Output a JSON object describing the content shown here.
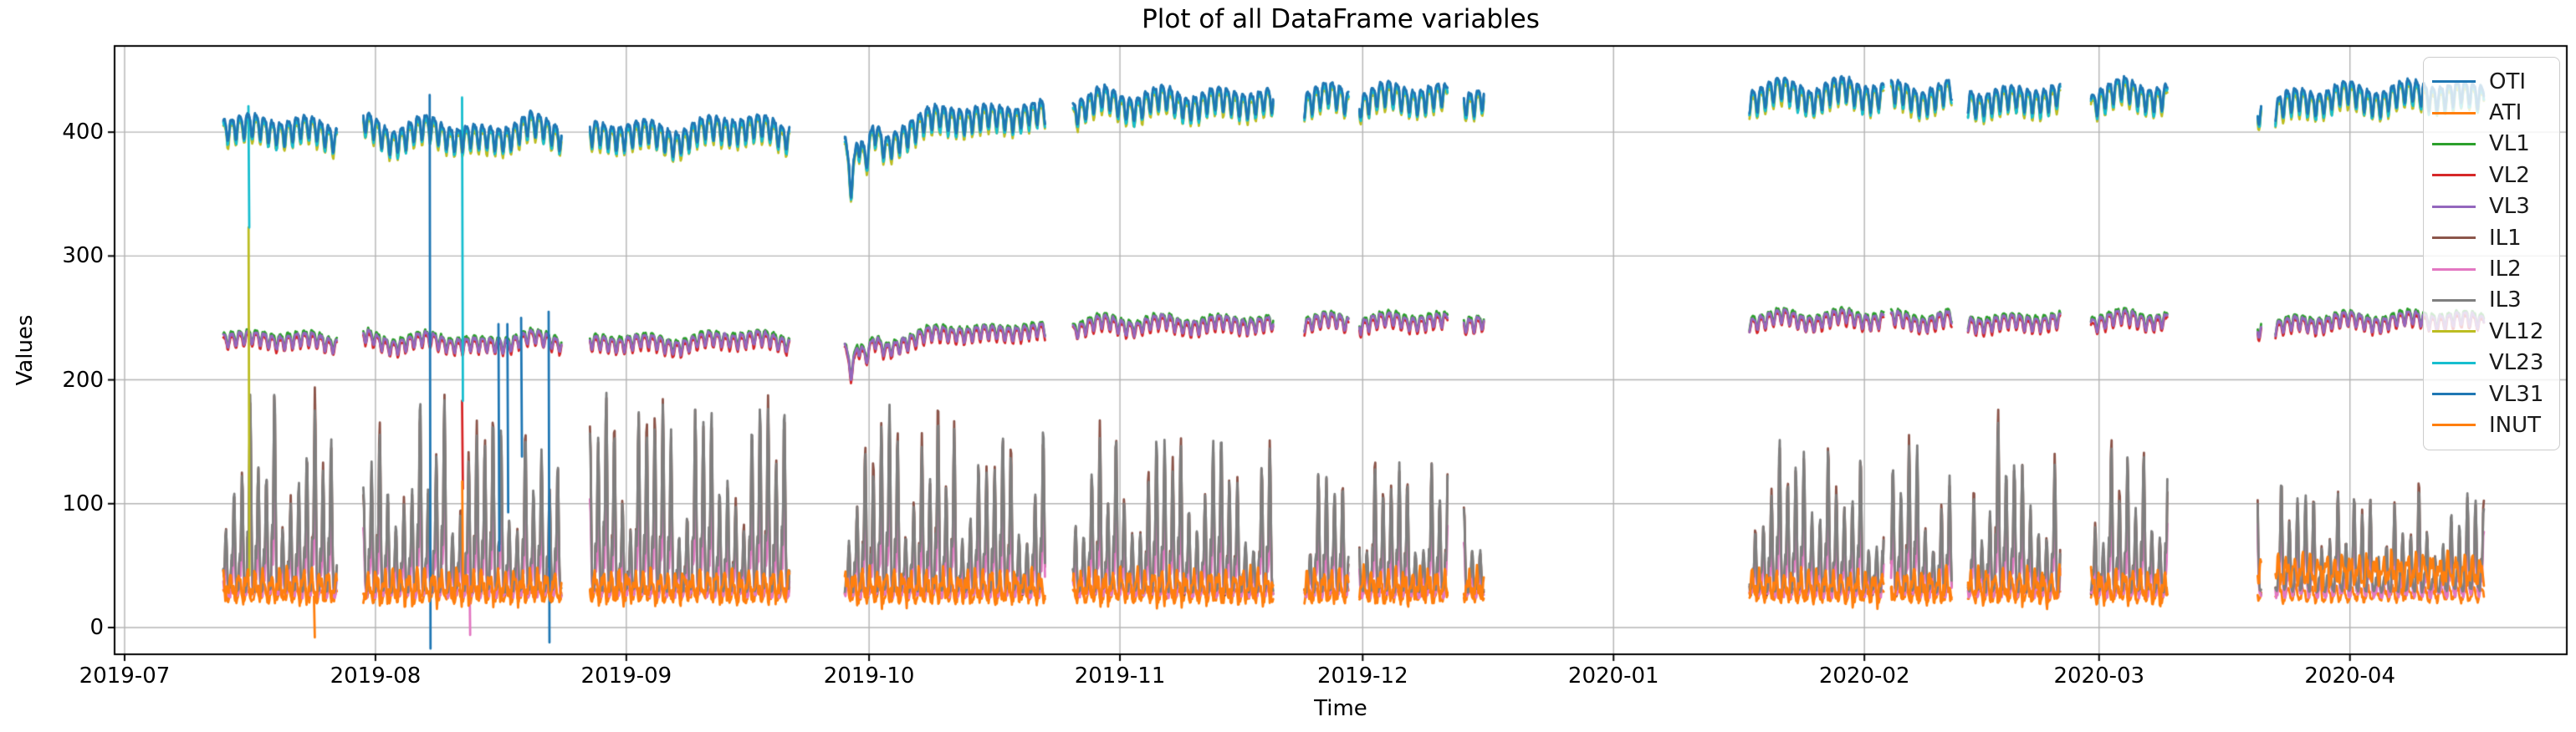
{
  "chart_data": {
    "type": "line",
    "title": "Plot of all DataFrame variables",
    "xlabel": "Time",
    "ylabel": "Values",
    "grid": true,
    "legend_position": "upper right",
    "axis_reference_date": "2019-07-01",
    "xlim_days": [
      -1.24,
      301.8
    ],
    "ylim": [
      -21.6,
      469.6
    ],
    "x_ticks": [
      {
        "label": "2019-07",
        "day": 0
      },
      {
        "label": "2019-08",
        "day": 31
      },
      {
        "label": "2019-09",
        "day": 62
      },
      {
        "label": "2019-10",
        "day": 92
      },
      {
        "label": "2019-11",
        "day": 123
      },
      {
        "label": "2019-12",
        "day": 153
      },
      {
        "label": "2020-01",
        "day": 184
      },
      {
        "label": "2020-02",
        "day": 215
      },
      {
        "label": "2020-03",
        "day": 244
      },
      {
        "label": "2020-04",
        "day": 275
      }
    ],
    "y_ticks": [
      0,
      100,
      200,
      300,
      400
    ],
    "series": [
      {
        "name": "OTI",
        "color": "#1f77b4"
      },
      {
        "name": "ATI",
        "color": "#ff7f0e"
      },
      {
        "name": "VL1",
        "color": "#2ca02c"
      },
      {
        "name": "VL2",
        "color": "#d62728"
      },
      {
        "name": "VL3",
        "color": "#9467bd"
      },
      {
        "name": "IL1",
        "color": "#8c564b"
      },
      {
        "name": "IL2",
        "color": "#e377c2"
      },
      {
        "name": "IL3",
        "color": "#7f7f7f"
      },
      {
        "name": "VL12",
        "color": "#bcbd22"
      },
      {
        "name": "VL23",
        "color": "#17becf"
      },
      {
        "name": "VL31",
        "color": "#1f77b4"
      },
      {
        "name": "INUT",
        "color": "#ff7f0e"
      }
    ],
    "segments": [
      {
        "start": 12.2,
        "end": 26.3
      },
      {
        "start": 29.5,
        "end": 54.0
      },
      {
        "start": 57.5,
        "end": 82.2
      },
      {
        "start": 89.0,
        "end": 113.8
      },
      {
        "start": 117.2,
        "end": 142.0
      },
      {
        "start": 145.8,
        "end": 151.3
      },
      {
        "start": 152.6,
        "end": 163.5
      },
      {
        "start": 165.5,
        "end": 168.0
      },
      {
        "start": 200.8,
        "end": 217.4
      },
      {
        "start": 218.3,
        "end": 225.8
      },
      {
        "start": 227.8,
        "end": 239.2
      },
      {
        "start": 243.0,
        "end": 252.5
      },
      {
        "start": 263.6,
        "end": 264.1
      },
      {
        "start": 265.8,
        "end": 291.6
      }
    ],
    "top_profile": [
      [
        12,
        407
      ],
      [
        16,
        402
      ],
      [
        20,
        404
      ],
      [
        26,
        398
      ],
      [
        29.5,
        406
      ],
      [
        33,
        396
      ],
      [
        38,
        403
      ],
      [
        44,
        393
      ],
      [
        50,
        405
      ],
      [
        54,
        399
      ],
      [
        57.5,
        396
      ],
      [
        62,
        401
      ],
      [
        68,
        395
      ],
      [
        75,
        406
      ],
      [
        82,
        399
      ],
      [
        89,
        396
      ],
      [
        89.8,
        360
      ],
      [
        90.6,
        394
      ],
      [
        91.6,
        376
      ],
      [
        92.6,
        398
      ],
      [
        94,
        386
      ],
      [
        96,
        400
      ],
      [
        99,
        408
      ],
      [
        103,
        414
      ],
      [
        107,
        410
      ],
      [
        111,
        417
      ],
      [
        114,
        413
      ],
      [
        117.2,
        419
      ],
      [
        121,
        426
      ],
      [
        125,
        422
      ],
      [
        129,
        427
      ],
      [
        133,
        422
      ],
      [
        137,
        427
      ],
      [
        142,
        423
      ],
      [
        145.8,
        426
      ],
      [
        149,
        429
      ],
      [
        152.6,
        425
      ],
      [
        157,
        430
      ],
      [
        163.5,
        427
      ],
      [
        165.5,
        427
      ],
      [
        168,
        429
      ],
      [
        200.8,
        429
      ],
      [
        205,
        433
      ],
      [
        209,
        429
      ],
      [
        213,
        434
      ],
      [
        217.4,
        430
      ],
      [
        218.3,
        431
      ],
      [
        222,
        428
      ],
      [
        225.8,
        432
      ],
      [
        227.8,
        427
      ],
      [
        232,
        425
      ],
      [
        236,
        429
      ],
      [
        239.2,
        428
      ],
      [
        243,
        427
      ],
      [
        247,
        433
      ],
      [
        252.5,
        429
      ],
      [
        263.6,
        420
      ],
      [
        265.8,
        419
      ],
      [
        269,
        425
      ],
      [
        274,
        430
      ],
      [
        279,
        427
      ],
      [
        284,
        433
      ],
      [
        288,
        429
      ],
      [
        291.6,
        431
      ]
    ],
    "il_max_profile": [
      [
        12,
        195
      ],
      [
        17,
        205
      ],
      [
        22,
        188
      ],
      [
        26,
        192
      ],
      [
        29.5,
        190
      ],
      [
        35,
        186
      ],
      [
        40,
        196
      ],
      [
        47,
        190
      ],
      [
        54,
        186
      ],
      [
        57.5,
        208
      ],
      [
        63,
        190
      ],
      [
        70,
        184
      ],
      [
        76,
        190
      ],
      [
        82,
        186
      ],
      [
        89,
        180
      ],
      [
        95,
        184
      ],
      [
        101,
        180
      ],
      [
        107,
        176
      ],
      [
        114,
        172
      ],
      [
        117.2,
        170
      ],
      [
        124,
        166
      ],
      [
        130,
        162
      ],
      [
        136,
        165
      ],
      [
        142,
        158
      ],
      [
        145.8,
        152
      ],
      [
        152.6,
        155
      ],
      [
        158,
        150
      ],
      [
        163.5,
        148
      ],
      [
        165.5,
        150
      ],
      [
        168,
        148
      ],
      [
        200.8,
        152
      ],
      [
        206,
        162
      ],
      [
        212,
        156
      ],
      [
        217.4,
        150
      ],
      [
        218.3,
        162
      ],
      [
        222,
        155
      ],
      [
        225.8,
        152
      ],
      [
        227.8,
        162
      ],
      [
        232,
        182
      ],
      [
        236,
        158
      ],
      [
        239.2,
        155
      ],
      [
        243,
        158
      ],
      [
        248,
        152
      ],
      [
        252.5,
        148
      ],
      [
        263.6,
        150
      ],
      [
        265.8,
        148
      ],
      [
        268,
        132
      ],
      [
        272,
        112
      ],
      [
        277,
        106
      ],
      [
        282,
        112
      ],
      [
        287,
        116
      ],
      [
        291.6,
        120
      ]
    ],
    "anomalies": [
      {
        "day": 15.3,
        "series": "VL23",
        "from": 421,
        "to": 323
      },
      {
        "day": 15.32,
        "series": "VL12",
        "from": 323,
        "to": 42
      },
      {
        "day": 23.4,
        "series": "INUT",
        "from": 25,
        "to": -8
      },
      {
        "day": 37.7,
        "series": "VL31",
        "from": 430,
        "to": -17
      },
      {
        "day": 41.7,
        "series": "VL23",
        "from": 428,
        "to": 183
      },
      {
        "day": 41.7,
        "series": "VL2",
        "from": 183,
        "to": 112
      },
      {
        "day": 41.72,
        "series": "INUT",
        "from": 118,
        "to": 30
      },
      {
        "day": 42.6,
        "series": "IL2",
        "from": 55,
        "to": -6
      },
      {
        "day": 46.2,
        "series": "VL31",
        "from": 245,
        "to": 62
      },
      {
        "day": 47.3,
        "series": "VL31",
        "from": 245,
        "to": 93
      },
      {
        "day": 49.0,
        "series": "VL31",
        "from": 250,
        "to": 138
      },
      {
        "day": 52.4,
        "series": "VL31",
        "from": 255,
        "to": -12
      }
    ]
  }
}
